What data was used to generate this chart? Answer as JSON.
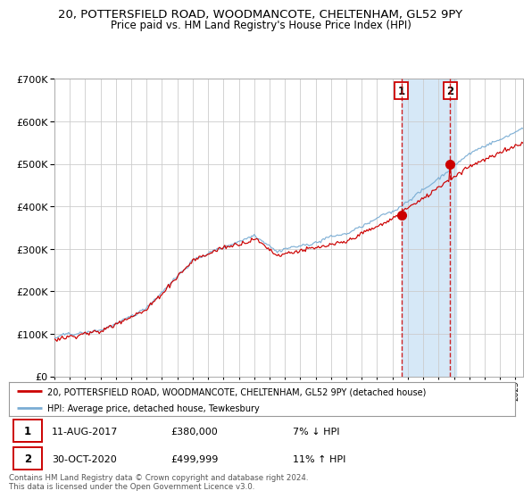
{
  "title": "20, POTTERSFIELD ROAD, WOODMANCOTE, CHELTENHAM, GL52 9PY",
  "subtitle": "Price paid vs. HM Land Registry's House Price Index (HPI)",
  "red_label": "20, POTTERSFIELD ROAD, WOODMANCOTE, CHELTENHAM, GL52 9PY (detached house)",
  "blue_label": "HPI: Average price, detached house, Tewkesbury",
  "sale1_date": "11-AUG-2017",
  "sale1_price": 380000,
  "sale1_note": "7% ↓ HPI",
  "sale2_date": "30-OCT-2020",
  "sale2_price": 499999,
  "sale2_note": "11% ↑ HPI",
  "copyright": "Contains HM Land Registry data © Crown copyright and database right 2024.\nThis data is licensed under the Open Government Licence v3.0.",
  "ylim": [
    0,
    700000
  ],
  "xlim_start": 1995,
  "xlim_end": 2025.5,
  "highlight_bg": "#d6e8f7",
  "red_color": "#cc0000",
  "blue_color": "#7aadd4",
  "grid_color": "#cccccc",
  "title_fontsize": 9.5,
  "subtitle_fontsize": 8.5
}
